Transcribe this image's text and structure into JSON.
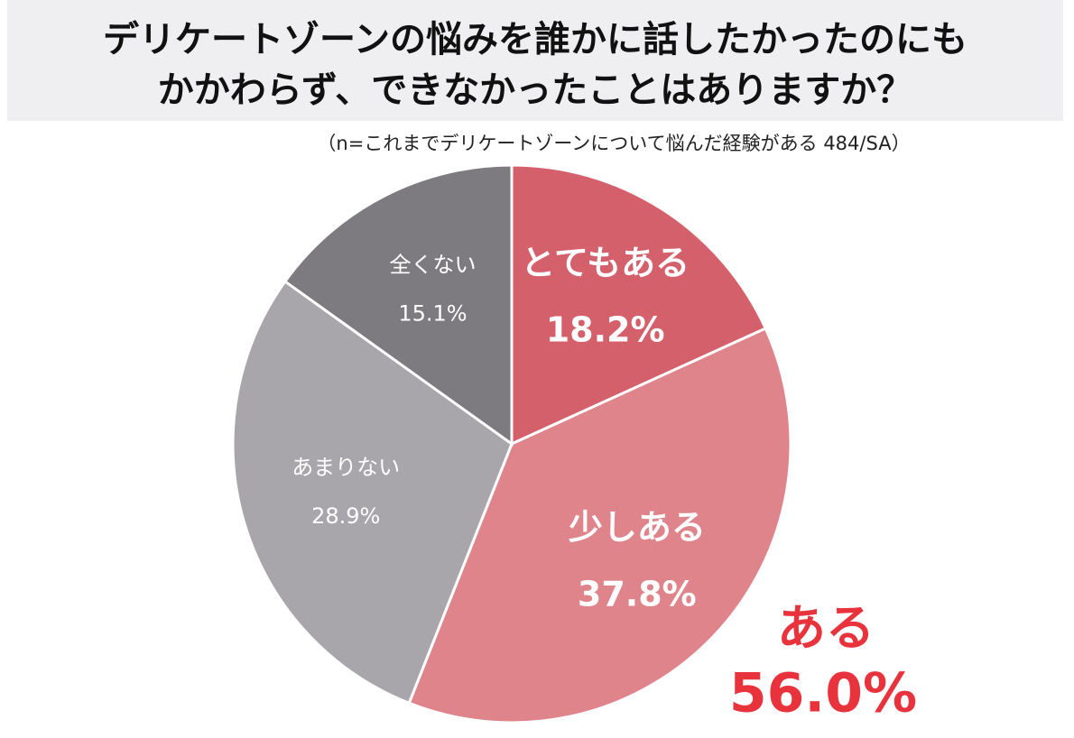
{
  "chart_data": {
    "type": "pie",
    "title": [
      "デリケートゾーンの悩みを誰かに話したかったのにも",
      "かかわらず、できなかったことはありますか？"
    ],
    "subtitle": "（n=これまでデリケートゾーンについて悩んだ経験がある 484/SA）",
    "categories": [
      "とてもある",
      "少しある",
      "あまりない",
      "全くない"
    ],
    "values": [
      18.2,
      37.8,
      28.9,
      15.1
    ],
    "value_labels": [
      "18.2%",
      "37.8%",
      "28.9%",
      "15.1%"
    ],
    "colors": [
      "#d4606b",
      "#e0848b",
      "#a8a6aa",
      "#7d7b7f"
    ],
    "annotation": {
      "text": "ある",
      "value_label": "56.0%",
      "color": "#e8323c"
    }
  }
}
